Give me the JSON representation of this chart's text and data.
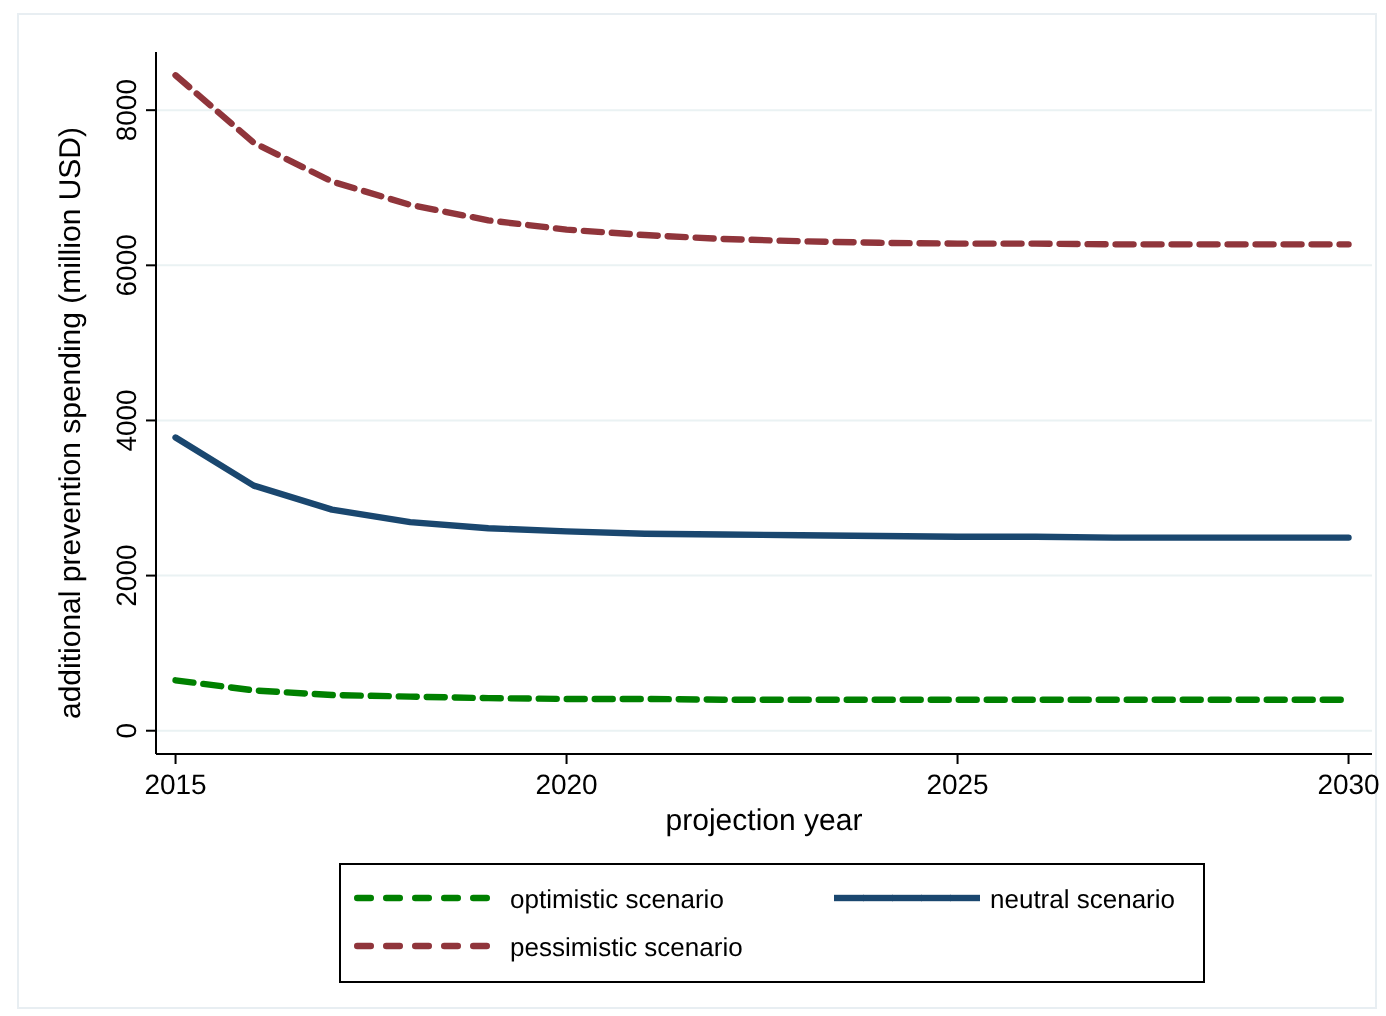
{
  "chart_data": {
    "type": "line",
    "xlabel": "projection year",
    "ylabel": "additional prevention spending (million USD)",
    "x": [
      2015,
      2016,
      2017,
      2018,
      2019,
      2020,
      2021,
      2022,
      2023,
      2024,
      2025,
      2026,
      2027,
      2028,
      2029,
      2030
    ],
    "xlim": [
      2014.75,
      2030.3
    ],
    "xticks": [
      2015,
      2020,
      2025,
      2030
    ],
    "ylim": [
      -300,
      8750
    ],
    "yticks": [
      0,
      2000,
      4000,
      6000,
      8000
    ],
    "grid": "y",
    "legend": "bottom",
    "marker": "none",
    "series": [
      {
        "name": "optimistic scenario",
        "color": "#008000",
        "line_style": "dashed",
        "values": [
          650,
          520,
          460,
          440,
          420,
          410,
          410,
          400,
          400,
          400,
          400,
          400,
          400,
          400,
          400,
          400
        ]
      },
      {
        "name": "neutral scenario",
        "color": "#1a476f",
        "line_style": "solid",
        "values": [
          3780,
          3160,
          2850,
          2690,
          2610,
          2570,
          2540,
          2530,
          2520,
          2510,
          2500,
          2500,
          2490,
          2490,
          2490,
          2490
        ]
      },
      {
        "name": "pessimistic scenario",
        "color": "#90353b",
        "line_style": "dashed",
        "values": [
          8450,
          7580,
          7080,
          6780,
          6580,
          6460,
          6390,
          6340,
          6310,
          6290,
          6280,
          6280,
          6270,
          6270,
          6270,
          6270
        ]
      }
    ]
  }
}
